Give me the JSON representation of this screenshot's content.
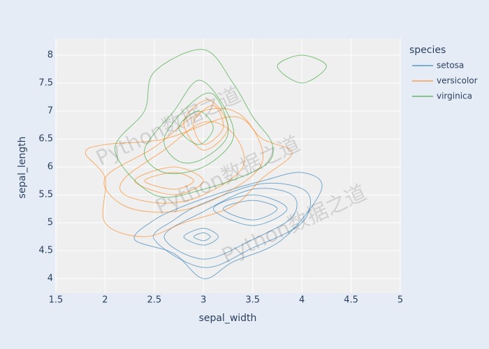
{
  "chart_data": {
    "type": "density_contour",
    "xlabel": "sepal_width",
    "ylabel": "sepal_length",
    "xlim": [
      1.5,
      5
    ],
    "ylim": [
      3.74,
      8.3
    ],
    "xticks": [
      1.5,
      2,
      2.5,
      3,
      3.5,
      4,
      4.5,
      5
    ],
    "yticks": [
      4,
      4.5,
      5,
      5.5,
      6,
      6.5,
      7,
      7.5,
      8
    ],
    "grid": true,
    "legend_title": "species",
    "legend": "right",
    "watermark": "Python数据之道",
    "series": [
      {
        "name": "setosa",
        "color": "#1f77b4",
        "contours": [
          {
            "x": [
              2.3,
              2.7,
              3.0,
              3.3,
              3.8,
              4.2,
              4.0,
              3.6,
              3.2,
              2.8,
              2.5
            ],
            "y": [
              4.7,
              4.45,
              4.0,
              4.3,
              4.7,
              5.6,
              5.9,
              5.75,
              5.55,
              5.3,
              5.05
            ]
          },
          {
            "x": [
              2.5,
              3.0,
              3.5,
              4.0,
              4.05,
              3.6,
              3.0,
              2.7
            ],
            "y": [
              4.7,
              4.2,
              4.55,
              5.0,
              5.55,
              5.7,
              5.35,
              5.05
            ]
          },
          {
            "x": [
              2.6,
              3.0,
              3.5,
              3.9,
              3.9,
              3.5,
              3.0
            ],
            "y": [
              4.75,
              4.35,
              4.7,
              5.1,
              5.5,
              5.6,
              5.2
            ]
          },
          {
            "x": [
              3.1,
              3.5,
              3.85,
              3.5
            ],
            "y": [
              5.25,
              4.95,
              5.25,
              5.5
            ]
          },
          {
            "x": [
              3.2,
              3.5,
              3.75,
              3.5
            ],
            "y": [
              5.25,
              5.05,
              5.25,
              5.4
            ]
          },
          {
            "x": [
              2.8,
              3.0,
              3.15,
              3.0
            ],
            "y": [
              4.75,
              4.6,
              4.75,
              4.9
            ]
          },
          {
            "x": [
              2.9,
              3.0,
              3.07,
              3.0
            ],
            "y": [
              4.75,
              4.68,
              4.75,
              4.82
            ]
          }
        ]
      },
      {
        "name": "versicolor",
        "color": "#ff7f0e",
        "contours": [
          {
            "x": [
              1.8,
              2.0,
              2.6,
              3.3,
              3.6,
              3.9,
              3.6,
              3.3,
              2.8,
              2.4,
              2.0,
              2.0
            ],
            "y": [
              6.25,
              6.4,
              6.5,
              6.9,
              6.5,
              6.25,
              5.8,
              5.3,
              5.0,
              4.75,
              5.0,
              5.8
            ]
          },
          {
            "x": [
              2.0,
              2.5,
              3.0,
              3.4,
              3.6,
              3.2,
              2.7,
              2.2
            ],
            "y": [
              5.8,
              6.35,
              7.0,
              6.9,
              6.1,
              5.5,
              5.2,
              5.3
            ]
          },
          {
            "x": [
              2.2,
              2.6,
              3.0,
              3.3,
              3.4,
              3.0,
              2.6,
              2.2
            ],
            "y": [
              5.8,
              6.3,
              6.8,
              6.6,
              6.0,
              5.5,
              5.35,
              5.5
            ]
          },
          {
            "x": [
              2.3,
              2.7,
              3.0,
              2.7
            ],
            "y": [
              5.75,
              6.0,
              5.75,
              5.5
            ]
          },
          {
            "x": [
              2.4,
              2.7,
              2.9,
              2.7
            ],
            "y": [
              5.75,
              5.9,
              5.75,
              5.6
            ]
          },
          {
            "x": [
              2.8,
              3.05,
              3.25,
              3.0
            ],
            "y": [
              6.8,
              7.2,
              6.7,
              6.3
            ]
          },
          {
            "x": [
              2.9,
              3.1,
              3.2,
              3.0
            ],
            "y": [
              6.8,
              7.1,
              6.7,
              6.4
            ]
          }
        ]
      },
      {
        "name": "virginica",
        "color": "#2ca02c",
        "contours": [
          {
            "x": [
              2.1,
              2.4,
              2.5,
              3.0,
              3.3,
              3.5,
              3.7,
              3.6,
              3.0,
              2.5
            ],
            "y": [
              6.3,
              7.0,
              7.7,
              8.1,
              7.5,
              6.9,
              6.4,
              6.0,
              5.6,
              5.5
            ]
          },
          {
            "x": [
              2.4,
              2.7,
              2.95,
              3.2,
              3.3,
              3.0,
              2.6
            ],
            "y": [
              6.3,
              7.0,
              7.55,
              7.1,
              6.5,
              6.0,
              5.9
            ]
          },
          {
            "x": [
              2.6,
              2.85,
              3.1,
              3.25,
              3.0,
              2.75
            ],
            "y": [
              6.5,
              7.1,
              7.3,
              6.6,
              6.15,
              6.1
            ]
          },
          {
            "x": [
              2.75,
              2.95,
              3.1,
              2.95
            ],
            "y": [
              6.7,
              7.0,
              6.7,
              6.4
            ]
          },
          {
            "x": [
              3.75,
              4.0,
              4.25,
              4.0
            ],
            "y": [
              7.8,
              8.0,
              7.8,
              7.5
            ]
          }
        ]
      }
    ]
  }
}
